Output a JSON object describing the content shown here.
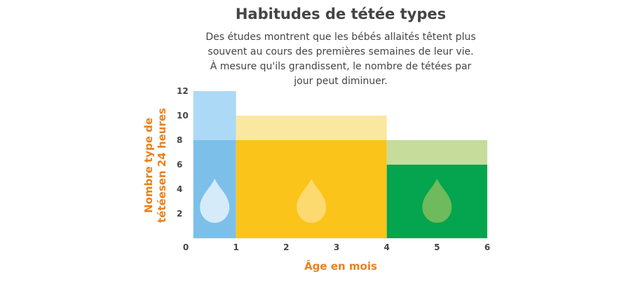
{
  "chart_data": {
    "type": "bar",
    "title": "Habitudes de tétée types",
    "subtitle": "Des études montrent que les bébés allaités têtent plus souvent au cours des premières semaines de leur vie. À mesure qu'ils grandissent, le nombre de tétées par jour peut diminuer.",
    "xlabel": "Âge en mois",
    "ylabel_lines": [
      "Nombre type de",
      "tétéesen 24 heures"
    ],
    "xlim": [
      0,
      6
    ],
    "ylim": [
      0,
      12
    ],
    "x_ticks": [
      "0",
      "1",
      "2",
      "3",
      "4",
      "5",
      "6"
    ],
    "y_ticks": [
      "2",
      "4",
      "6",
      "8",
      "10",
      "12"
    ],
    "grid": false,
    "legend": "none",
    "bars": [
      {
        "x_start": 0.15,
        "x_end": 1,
        "min": 8,
        "max": 12,
        "light_color": "#acd9f5",
        "dark_color": "#7cc0ea",
        "drop_color": "#d5ebfa"
      },
      {
        "x_start": 1,
        "x_end": 4,
        "min": 8,
        "max": 10,
        "light_color": "#fbe8a0",
        "dark_color": "#fbc41a",
        "drop_color": "#fcda70"
      },
      {
        "x_start": 4,
        "x_end": 6,
        "min": 6,
        "max": 8,
        "light_color": "#c6dc9a",
        "dark_color": "#05a44e",
        "drop_color": "#6eba5c"
      }
    ]
  }
}
